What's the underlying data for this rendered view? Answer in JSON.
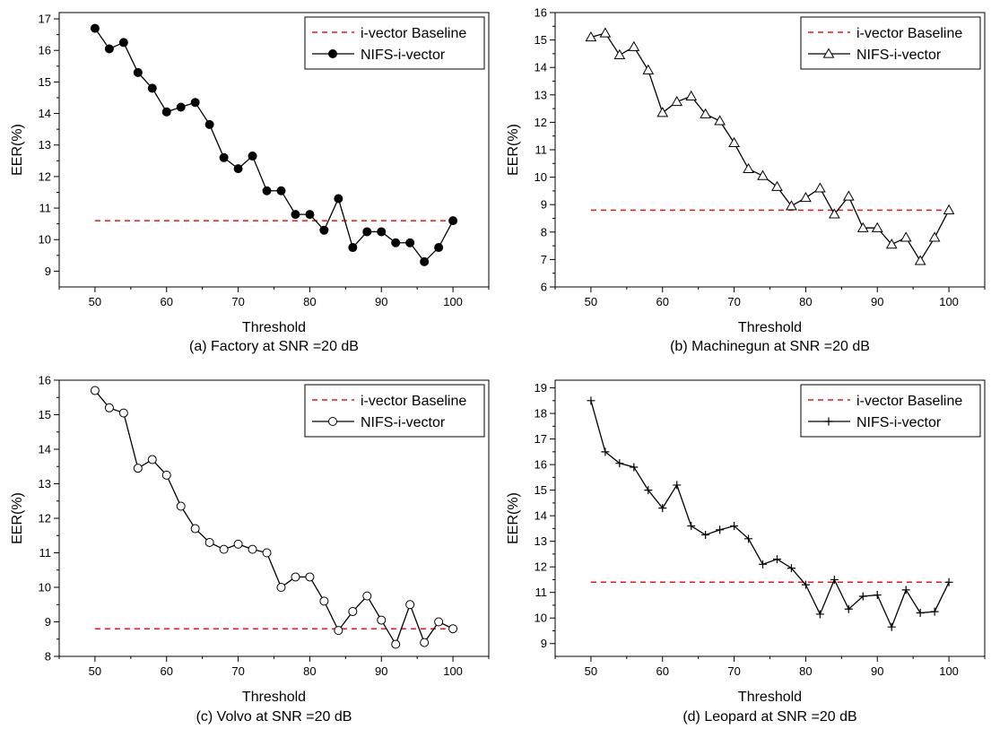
{
  "chart_data": [
    {
      "type": "line",
      "caption": "(a) Factory at SNR =20 dB",
      "xlabel": "Threshold",
      "ylabel": "EER(%)",
      "xlim": [
        45,
        105
      ],
      "ylim": [
        8.5,
        17.2
      ],
      "xticks": [
        50,
        60,
        70,
        80,
        90,
        100
      ],
      "yticks": [
        9,
        10,
        11,
        12,
        13,
        14,
        15,
        16,
        17
      ],
      "legend_position": "top-right",
      "baseline": {
        "name": "i-vector Baseline",
        "value": 10.6,
        "color": "#e8141c"
      },
      "series": [
        {
          "name": "NIFS-i-vector",
          "marker": "filled-circle",
          "x": [
            50,
            52,
            54,
            56,
            58,
            60,
            62,
            64,
            66,
            68,
            70,
            72,
            74,
            76,
            78,
            80,
            82,
            84,
            86,
            88,
            90,
            92,
            94,
            96,
            98,
            100
          ],
          "values": [
            16.7,
            16.05,
            16.25,
            15.3,
            14.8,
            14.05,
            14.2,
            14.35,
            13.65,
            12.6,
            12.25,
            12.65,
            11.55,
            11.55,
            10.8,
            10.8,
            10.3,
            11.3,
            9.75,
            10.25,
            10.25,
            9.9,
            9.9,
            9.3,
            9.75,
            10.6
          ]
        }
      ]
    },
    {
      "type": "line",
      "caption": "(b) Machinegun  at SNR =20 dB",
      "xlabel": "Threshold",
      "ylabel": "EER(%)",
      "xlim": [
        45,
        105
      ],
      "ylim": [
        6,
        16
      ],
      "xticks": [
        50,
        60,
        70,
        80,
        90,
        100
      ],
      "yticks": [
        6,
        7,
        8,
        9,
        10,
        11,
        12,
        13,
        14,
        15,
        16
      ],
      "legend_position": "top-right",
      "baseline": {
        "name": "i-vector Baseline",
        "value": 8.8,
        "color": "#e8141c"
      },
      "series": [
        {
          "name": "NIFS-i-vector",
          "marker": "open-triangle",
          "x": [
            50,
            52,
            54,
            56,
            58,
            60,
            62,
            64,
            66,
            68,
            70,
            72,
            74,
            76,
            78,
            80,
            82,
            84,
            86,
            88,
            90,
            92,
            94,
            96,
            98,
            100
          ],
          "values": [
            15.1,
            15.25,
            14.45,
            14.75,
            13.9,
            12.35,
            12.75,
            12.95,
            12.3,
            12.05,
            11.25,
            10.3,
            10.05,
            9.65,
            8.95,
            9.25,
            9.6,
            8.65,
            9.3,
            8.15,
            8.15,
            7.55,
            7.8,
            6.95,
            7.8,
            8.8
          ]
        }
      ]
    },
    {
      "type": "line",
      "caption": "(c) Volvo at SNR =20 dB",
      "xlabel": "Threshold",
      "ylabel": "EER(%)",
      "xlim": [
        45,
        105
      ],
      "ylim": [
        8,
        16
      ],
      "xticks": [
        50,
        60,
        70,
        80,
        90,
        100
      ],
      "yticks": [
        8,
        9,
        10,
        11,
        12,
        13,
        14,
        15,
        16
      ],
      "legend_position": "top-right",
      "baseline": {
        "name": "i-vector Baseline",
        "value": 8.8,
        "color": "#e8141c"
      },
      "series": [
        {
          "name": "NIFS-i-vector",
          "marker": "open-circle",
          "x": [
            50,
            52,
            54,
            56,
            58,
            60,
            62,
            64,
            66,
            68,
            70,
            72,
            74,
            76,
            78,
            80,
            82,
            84,
            86,
            88,
            90,
            92,
            94,
            96,
            98,
            100
          ],
          "values": [
            15.7,
            15.2,
            15.05,
            13.45,
            13.7,
            13.25,
            12.35,
            11.7,
            11.3,
            11.1,
            11.25,
            11.1,
            11.0,
            10.0,
            10.3,
            10.3,
            9.6,
            8.75,
            9.3,
            9.75,
            9.05,
            8.35,
            9.5,
            8.4,
            9.0,
            8.8
          ]
        }
      ]
    },
    {
      "type": "line",
      "caption": "(d) Leopard at SNR =20 dB",
      "xlabel": "Threshold",
      "ylabel": "EER(%)",
      "xlim": [
        45,
        105
      ],
      "ylim": [
        8.5,
        19.3
      ],
      "xticks": [
        50,
        60,
        70,
        80,
        90,
        100
      ],
      "yticks": [
        9,
        10,
        11,
        12,
        13,
        14,
        15,
        16,
        17,
        18,
        19
      ],
      "legend_position": "top-right",
      "baseline": {
        "name": "i-vector Baseline",
        "value": 11.4,
        "color": "#e8141c"
      },
      "series": [
        {
          "name": "NIFS-i-vector",
          "marker": "plus",
          "x": [
            50,
            52,
            54,
            56,
            58,
            60,
            62,
            64,
            66,
            68,
            70,
            72,
            74,
            76,
            78,
            80,
            82,
            84,
            86,
            88,
            90,
            92,
            94,
            96,
            98,
            100
          ],
          "values": [
            18.5,
            16.5,
            16.05,
            15.9,
            15.0,
            14.3,
            15.2,
            13.6,
            13.25,
            13.45,
            13.6,
            13.1,
            12.1,
            12.3,
            11.95,
            11.3,
            10.15,
            11.5,
            10.35,
            10.85,
            10.9,
            9.65,
            11.1,
            10.2,
            10.25,
            11.4
          ]
        }
      ]
    }
  ]
}
